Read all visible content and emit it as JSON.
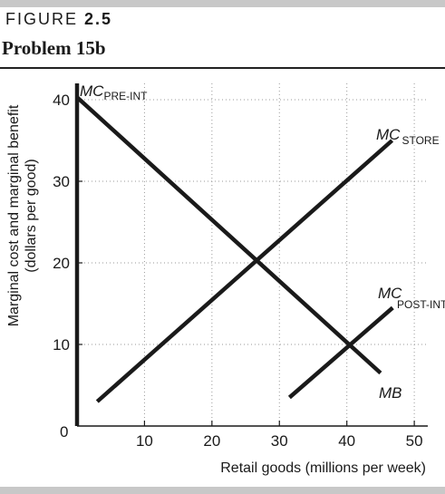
{
  "header": {
    "figure_word": "FIGURE",
    "figure_number": "2.5",
    "problem": "Problem 15b"
  },
  "chart_data": {
    "type": "line",
    "xlabel": "Retail goods (millions per week)",
    "ylabel_line1": "Marginal cost and marginal benefit",
    "ylabel_line2": "(dollars per good)",
    "xlim": [
      0,
      52
    ],
    "ylim": [
      0,
      42
    ],
    "x_ticks": [
      10,
      20,
      30,
      40,
      50
    ],
    "y_ticks": [
      10,
      20,
      30,
      40
    ],
    "origin_label": "0",
    "grid": true,
    "series": [
      {
        "name": "MB",
        "points": [
          [
            0,
            40.3
          ],
          [
            45,
            6.5
          ]
        ]
      },
      {
        "name": "MC_STORE",
        "points": [
          [
            3,
            3
          ],
          [
            46.7,
            35
          ]
        ]
      },
      {
        "name": "MC_POST-INT",
        "points": [
          [
            31.5,
            3.5
          ],
          [
            46.8,
            14.5
          ]
        ]
      },
      {
        "name": "MC_PRE-INT",
        "points": [
          [
            0,
            0
          ],
          [
            0,
            42
          ]
        ]
      }
    ],
    "labels": {
      "mb": "MB",
      "mc_store_main": "MC",
      "mc_store_sub": "STORE",
      "mc_post_main": "MC",
      "mc_post_sub": "POST-INT",
      "mc_pre_main": "MC",
      "mc_pre_sub": "PRE-INT"
    }
  }
}
